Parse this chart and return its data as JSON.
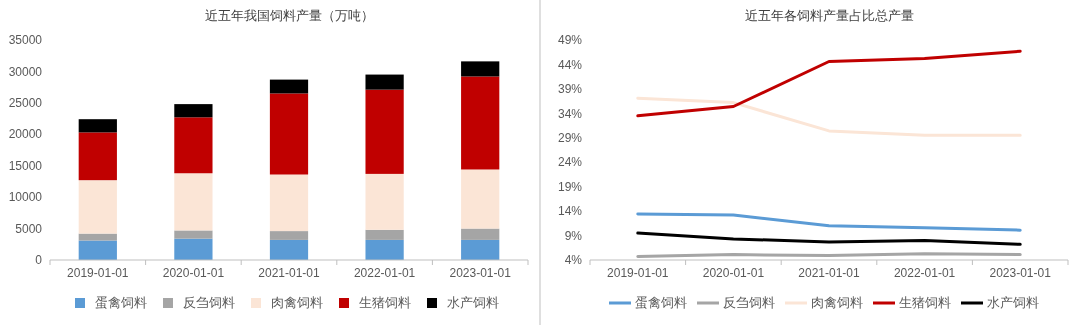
{
  "chart_data": [
    {
      "type": "bar",
      "title": "近五年我国饲料产量（万吨）",
      "stacked": true,
      "categories": [
        "2019-01-01",
        "2020-01-01",
        "2021-01-01",
        "2022-01-01",
        "2023-01-01"
      ],
      "ylim": [
        0,
        35000
      ],
      "yticks": [
        0,
        5000,
        10000,
        15000,
        20000,
        25000,
        30000,
        35000
      ],
      "grid": false,
      "legend": "bottom",
      "series": [
        {
          "name": "蛋禽饲料",
          "color": "#5b9bd5",
          "values": [
            3100,
            3400,
            3200,
            3200,
            3200
          ]
        },
        {
          "name": "反刍饲料",
          "color": "#a5a5a5",
          "values": [
            1100,
            1300,
            1400,
            1600,
            1800
          ]
        },
        {
          "name": "肉禽饲料",
          "color": "#fbe5d6",
          "values": [
            8500,
            9100,
            9000,
            8900,
            9400
          ]
        },
        {
          "name": "生猪饲料",
          "color": "#c00000",
          "values": [
            7600,
            8900,
            12900,
            13400,
            14800
          ]
        },
        {
          "name": "水产饲料",
          "color": "#000000",
          "values": [
            2100,
            2100,
            2200,
            2400,
            2400
          ]
        }
      ]
    },
    {
      "type": "line",
      "title": "近五年各饲料产量占比总产量",
      "categories": [
        "2019-01-01",
        "2020-01-01",
        "2021-01-01",
        "2022-01-01",
        "2023-01-01"
      ],
      "ylim": [
        4,
        49
      ],
      "yticks": [
        {
          "value": 4,
          "label": "4%"
        },
        {
          "value": 9,
          "label": "9%"
        },
        {
          "value": 14,
          "label": "14%"
        },
        {
          "value": 19,
          "label": "19%"
        },
        {
          "value": 24,
          "label": "24%"
        },
        {
          "value": 29,
          "label": "29%"
        },
        {
          "value": 34,
          "label": "34%"
        },
        {
          "value": 39,
          "label": "39%"
        },
        {
          "value": 44,
          "label": "44%"
        },
        {
          "value": 49,
          "label": "49%"
        }
      ],
      "grid": false,
      "legend": "bottom",
      "marker": "none",
      "line_style": "solid",
      "series": [
        {
          "name": "蛋禽饲料",
          "color": "#5b9bd5",
          "values": [
            13.4,
            13.2,
            11.0,
            10.6,
            10.1
          ]
        },
        {
          "name": "反刍饲料",
          "color": "#a5a5a5",
          "values": [
            4.7,
            5.1,
            4.9,
            5.3,
            5.1
          ]
        },
        {
          "name": "肉禽饲料",
          "color": "#fbe5d6",
          "values": [
            37.1,
            36.2,
            30.4,
            29.5,
            29.5
          ]
        },
        {
          "name": "生猪饲料",
          "color": "#c00000",
          "values": [
            33.5,
            35.4,
            44.6,
            45.2,
            46.7
          ]
        },
        {
          "name": "水产饲料",
          "color": "#000000",
          "values": [
            9.5,
            8.3,
            7.7,
            8.0,
            7.2
          ]
        }
      ]
    }
  ]
}
